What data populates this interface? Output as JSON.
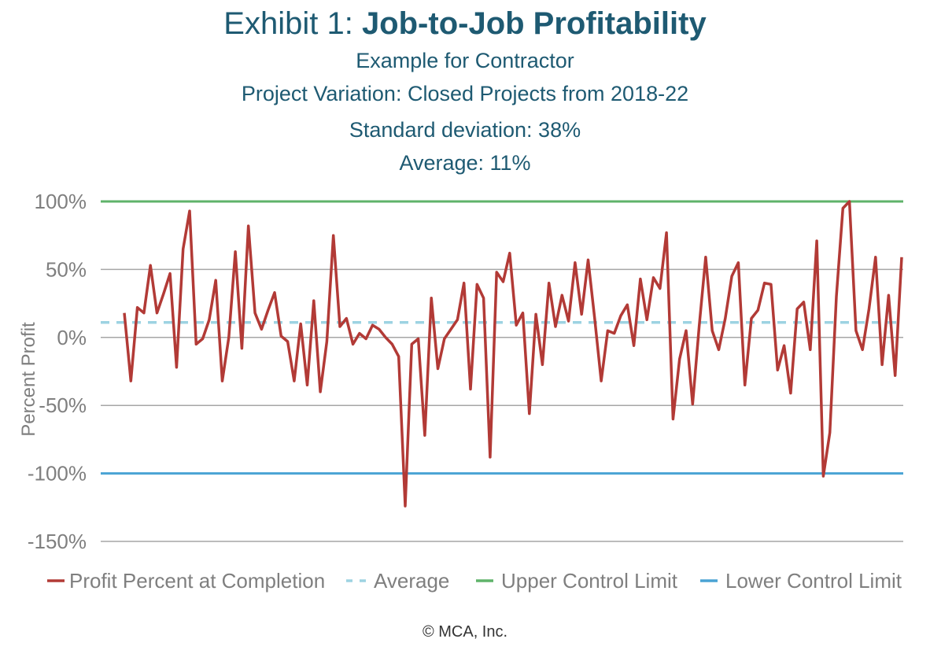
{
  "title_prefix": "Exhibit 1: ",
  "title_bold": "Job-to-Job Profitability",
  "subtitles": [
    "Example for Contractor",
    "Project Variation: Closed Projects from 2018-22",
    "Standard deviation: 38%",
    "Average: 11%"
  ],
  "footer": "© MCA, Inc.",
  "colors": {
    "profit": "#b23a36",
    "average": "#9dd3e2",
    "upper": "#5fb36a",
    "lower": "#4aa3d4",
    "grid": "#a6a6a6",
    "tick_text": "#7f7f7f",
    "title": "#1e5a72"
  },
  "chart_data": {
    "type": "line",
    "ylabel": "Percent Profit",
    "ylim": [
      -150,
      100
    ],
    "yticks": [
      100,
      50,
      0,
      -50,
      -100,
      -150
    ],
    "ytick_labels": [
      "100%",
      "50%",
      "0%",
      "-50%",
      "-100%",
      "-150%"
    ],
    "grid": true,
    "legend_position": "bottom",
    "series": [
      {
        "name": "Profit Percent at Completion",
        "style": "solid",
        "values": [
          18,
          -32,
          22,
          18,
          53,
          18,
          32,
          47,
          -22,
          65,
          93,
          -5,
          -1,
          13,
          42,
          -32,
          0,
          63,
          -8,
          82,
          18,
          6,
          20,
          33,
          1,
          -3,
          -32,
          10,
          -35,
          27,
          -40,
          -3,
          75,
          8,
          14,
          -5,
          3,
          -1,
          9,
          6,
          0,
          -5,
          -14,
          -124,
          -5,
          -1,
          -72,
          29,
          -23,
          -1,
          6,
          13,
          40,
          -38,
          39,
          29,
          -88,
          48,
          41,
          62,
          9,
          18,
          -56,
          17,
          -20,
          40,
          8,
          31,
          12,
          55,
          17,
          57,
          14,
          -32,
          5,
          3,
          16,
          24,
          -6,
          43,
          13,
          44,
          36,
          77,
          -60,
          -16,
          5,
          -49,
          8,
          59,
          5,
          -9,
          14,
          45,
          55,
          -35,
          14,
          20,
          40,
          39,
          -24,
          -6,
          -41,
          21,
          26,
          -9,
          71,
          -102,
          -70,
          30,
          95,
          100,
          5,
          -9,
          21,
          59,
          -20,
          31,
          -28,
          59
        ]
      },
      {
        "name": "Average",
        "style": "dashed",
        "values": [
          11
        ]
      },
      {
        "name": "Upper Control Limit",
        "style": "solid",
        "values": [
          100
        ]
      },
      {
        "name": "Lower Control Limit",
        "style": "solid",
        "values": [
          -100
        ]
      }
    ]
  }
}
